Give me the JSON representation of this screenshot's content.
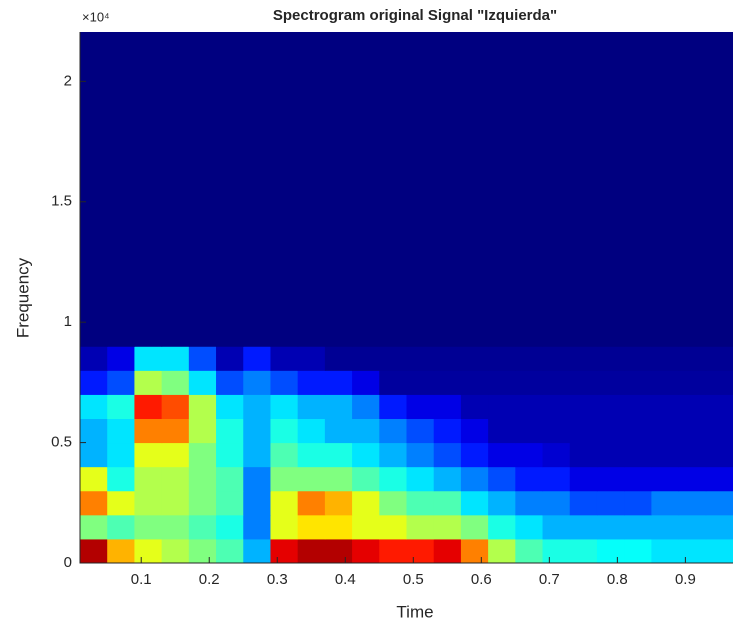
{
  "chart_data": {
    "type": "heatmap",
    "title": "Spectrogram original Signal \"Izquierda\"",
    "x_label": "Time",
    "y_label": "Frequency",
    "y_multiplier": "×10⁴",
    "colormap": "jet",
    "xlim": [
      0.01,
      0.97
    ],
    "xticks": [
      0.1,
      0.2,
      0.3,
      0.4,
      0.5,
      0.6,
      0.7,
      0.8,
      0.9
    ],
    "ylim": [
      0,
      22050
    ],
    "yticks": [
      {
        "value": 0,
        "label": "0"
      },
      {
        "value": 5000,
        "label": "0.5"
      },
      {
        "value": 10000,
        "label": "1"
      },
      {
        "value": 15000,
        "label": "1.5"
      },
      {
        "value": 20000,
        "label": "2"
      }
    ],
    "xbins": [
      0.01,
      0.05,
      0.09,
      0.13,
      0.17,
      0.21,
      0.25,
      0.29,
      0.33,
      0.37,
      0.41,
      0.45,
      0.49,
      0.53,
      0.57,
      0.61,
      0.65,
      0.69,
      0.73,
      0.77,
      0.81,
      0.85,
      0.89,
      0.93,
      0.97
    ],
    "ybins": [
      0,
      1000,
      2000,
      3000,
      4000,
      5000,
      6000,
      7000,
      8000,
      9000,
      22050
    ],
    "z": [
      [
        0.95,
        0.7,
        0.6,
        0.55,
        0.5,
        0.45,
        0.3,
        0.9,
        0.95,
        0.95,
        0.9,
        0.85,
        0.85,
        0.9,
        0.75,
        0.55,
        0.45,
        0.4,
        0.4,
        0.38,
        0.38,
        0.35,
        0.35,
        0.35
      ],
      [
        0.5,
        0.45,
        0.5,
        0.5,
        0.45,
        0.4,
        0.25,
        0.6,
        0.65,
        0.65,
        0.6,
        0.6,
        0.55,
        0.55,
        0.5,
        0.4,
        0.35,
        0.3,
        0.3,
        0.3,
        0.3,
        0.3,
        0.3,
        0.3
      ],
      [
        0.75,
        0.6,
        0.55,
        0.55,
        0.5,
        0.45,
        0.25,
        0.6,
        0.75,
        0.7,
        0.6,
        0.5,
        0.45,
        0.45,
        0.35,
        0.3,
        0.25,
        0.25,
        0.2,
        0.2,
        0.2,
        0.25,
        0.25,
        0.25
      ],
      [
        0.6,
        0.4,
        0.55,
        0.55,
        0.5,
        0.45,
        0.25,
        0.5,
        0.5,
        0.5,
        0.45,
        0.4,
        0.35,
        0.3,
        0.25,
        0.2,
        0.15,
        0.15,
        0.1,
        0.1,
        0.1,
        0.1,
        0.1,
        0.1
      ],
      [
        0.3,
        0.35,
        0.6,
        0.6,
        0.5,
        0.4,
        0.3,
        0.45,
        0.4,
        0.4,
        0.35,
        0.3,
        0.25,
        0.2,
        0.15,
        0.1,
        0.1,
        0.08,
        0.05,
        0.05,
        0.05,
        0.05,
        0.05,
        0.05
      ],
      [
        0.3,
        0.35,
        0.75,
        0.75,
        0.55,
        0.4,
        0.3,
        0.4,
        0.35,
        0.3,
        0.3,
        0.25,
        0.2,
        0.15,
        0.1,
        0.05,
        0.05,
        0.05,
        0.05,
        0.05,
        0.05,
        0.05,
        0.05,
        0.05
      ],
      [
        0.35,
        0.4,
        0.85,
        0.8,
        0.55,
        0.35,
        0.3,
        0.35,
        0.3,
        0.3,
        0.25,
        0.15,
        0.1,
        0.1,
        0.05,
        0.05,
        0.05,
        0.05,
        0.05,
        0.05,
        0.05,
        0.05,
        0.05,
        0.05
      ],
      [
        0.15,
        0.2,
        0.55,
        0.5,
        0.35,
        0.2,
        0.25,
        0.2,
        0.15,
        0.15,
        0.1,
        0.03,
        0.03,
        0.03,
        0.03,
        0.03,
        0.03,
        0.03,
        0.03,
        0.03,
        0.03,
        0.03,
        0.03,
        0.03
      ],
      [
        0.05,
        0.1,
        0.35,
        0.35,
        0.2,
        0.05,
        0.15,
        0.05,
        0.05,
        0.02,
        0.02,
        0.02,
        0.02,
        0.02,
        0.02,
        0.02,
        0.02,
        0.02,
        0.02,
        0.02,
        0.02,
        0.02,
        0.02,
        0.02
      ],
      [
        0,
        0,
        0,
        0,
        0,
        0,
        0,
        0,
        0,
        0,
        0,
        0,
        0,
        0,
        0,
        0,
        0,
        0,
        0,
        0,
        0,
        0,
        0,
        0
      ]
    ]
  }
}
